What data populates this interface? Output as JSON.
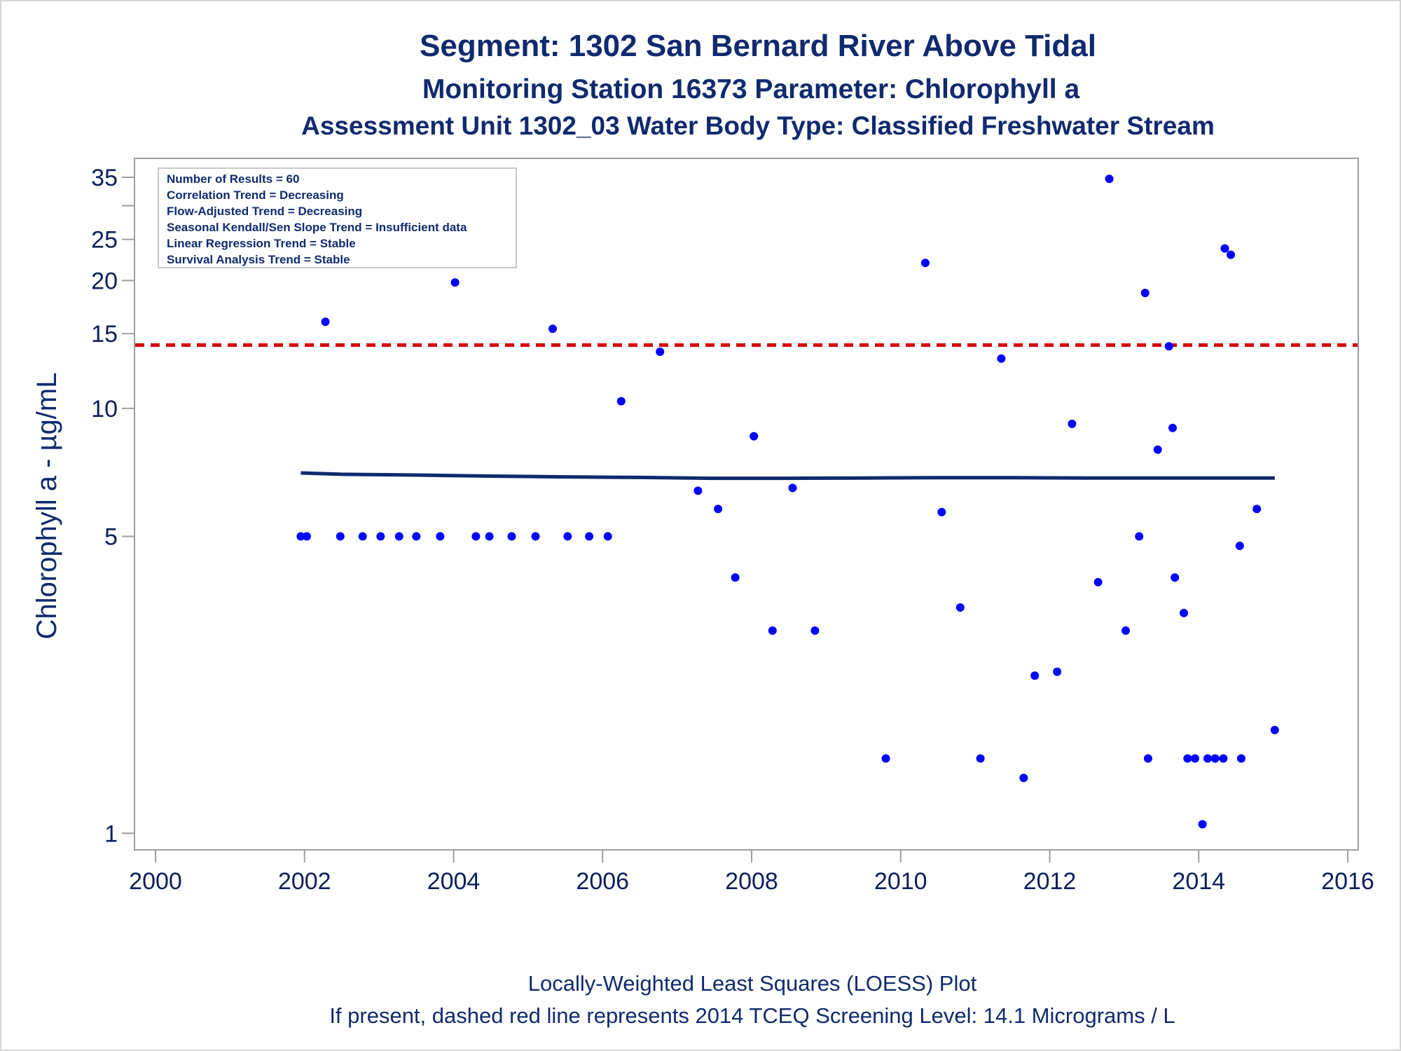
{
  "chart_data": {
    "type": "scatter",
    "title": "Segment: 1302  San Bernard River Above Tidal",
    "subtitle": "Monitoring Station 16373 Parameter: Chlorophyll a",
    "subtitle2": "Assessment Unit 1302_03   Water Body Type: Classified Freshwater Stream",
    "xlabel": "",
    "ylabel": "Chlorophyll a -  µg/mL",
    "xlim": [
      2000,
      2016
    ],
    "xticks": [
      "2000",
      "2002",
      "2004",
      "2006",
      "2008",
      "2010",
      "2012",
      "2014",
      "2016"
    ],
    "yscale": "log",
    "ylim": [
      0.96,
      36.5
    ],
    "yticks_labeled": [
      "1",
      "5",
      "10",
      "15",
      "20",
      "25",
      "35"
    ],
    "yticks_minor": [
      30
    ],
    "grid": false,
    "stats_box": {
      "placement": "top-left",
      "lines": [
        "Number of Results = 60",
        "Correlation Trend = Decreasing",
        "Flow-Adjusted Trend = Decreasing",
        "Seasonal Kendall/Sen Slope Trend = Insufficient data",
        "Linear Regression Trend = Stable",
        "Survival Analysis Trend = Stable"
      ]
    },
    "screening_level": {
      "value": 14.1,
      "color": "#d40000",
      "style": "dashed"
    },
    "footnote1": "Locally-Weighted Least Squares (LOESS) Plot",
    "footnote2": "If present, dashed red line represents 2014 TCEQ Screening Level: 14.1 Micrograms / L",
    "colors": {
      "points": "#0000ff",
      "loess": "#102a6e",
      "text": "#102a6e",
      "axis": "#9e9e9e"
    },
    "series": [
      {
        "kind": "points",
        "x": [
          2001.95,
          2002.03,
          2002.28,
          2002.48,
          2002.78,
          2003.02,
          2003.27,
          2003.5,
          2003.82,
          2004.02,
          2004.3,
          2004.48,
          2004.78,
          2005.1,
          2005.33,
          2005.53,
          2005.82,
          2006.07,
          2006.25,
          2006.77,
          2007.28,
          2007.55,
          2007.78,
          2008.03,
          2008.28,
          2008.55,
          2008.85,
          2009.8,
          2010.33,
          2010.55,
          2010.8,
          2011.07,
          2011.35,
          2011.65,
          2011.8,
          2012.1,
          2012.3,
          2012.65,
          2012.8,
          2013.02,
          2013.2,
          2013.28,
          2013.32,
          2013.45,
          2013.6,
          2013.65,
          2013.68,
          2013.8,
          2013.85,
          2013.95,
          2014.05,
          2014.12,
          2014.22,
          2014.33,
          2014.35,
          2014.43,
          2014.55,
          2014.57,
          2014.78,
          2015.02
        ],
        "y": [
          5,
          5,
          16,
          5,
          5,
          5,
          5,
          5,
          5,
          19.8,
          5,
          5,
          5,
          5,
          15.4,
          5,
          5,
          5,
          10.4,
          13.6,
          6.4,
          5.8,
          4,
          8.6,
          3,
          6.5,
          3,
          1.5,
          22,
          5.7,
          3.4,
          1.5,
          13.1,
          1.35,
          2.35,
          2.4,
          9.2,
          3.9,
          34.7,
          3,
          5,
          18.7,
          1.5,
          8,
          14,
          9,
          4,
          3.3,
          1.5,
          1.5,
          1.05,
          1.5,
          1.5,
          1.5,
          23.8,
          23,
          4.75,
          1.5,
          5.8,
          1.75
        ]
      },
      {
        "kind": "loess",
        "x": [
          2001.95,
          2002.5,
          2003.5,
          2004.5,
          2005.5,
          2006.5,
          2007.5,
          2008.5,
          2009.5,
          2010.5,
          2011.5,
          2012.5,
          2013.5,
          2014.5,
          2015.02
        ],
        "y": [
          7.05,
          7.0,
          6.97,
          6.93,
          6.9,
          6.88,
          6.85,
          6.85,
          6.86,
          6.87,
          6.87,
          6.86,
          6.86,
          6.86,
          6.86
        ]
      }
    ]
  }
}
